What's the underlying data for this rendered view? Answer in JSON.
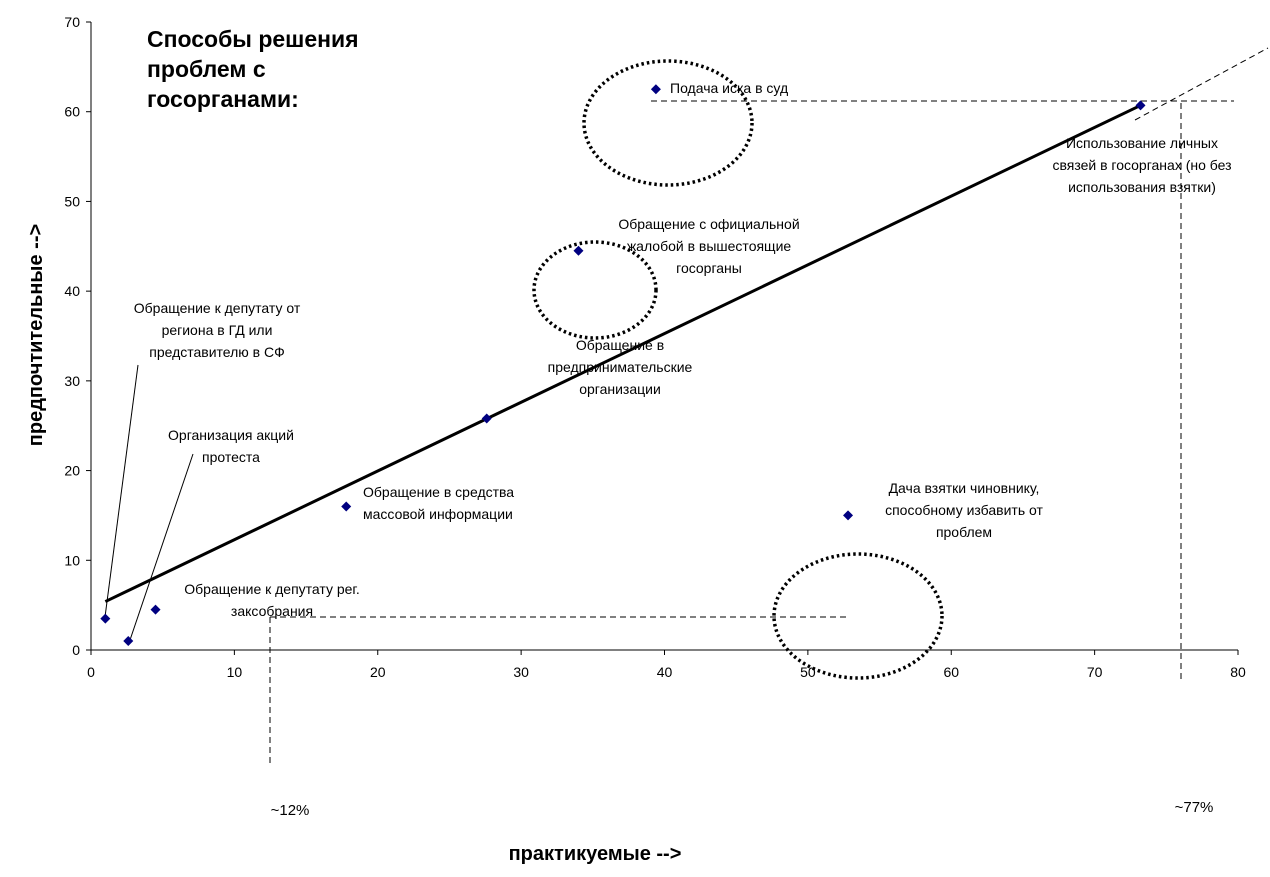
{
  "chart_data": {
    "type": "scatter",
    "title": [
      "Способы решения",
      "проблем с",
      "госорганами:"
    ],
    "xlabel": "практикуемые -->",
    "ylabel": "предпочтительные -->",
    "xlim": [
      0,
      80
    ],
    "ylim": [
      0,
      70
    ],
    "xticks": [
      0,
      10,
      20,
      30,
      40,
      50,
      60,
      70,
      80
    ],
    "yticks": [
      0,
      10,
      20,
      30,
      40,
      50,
      60,
      70
    ],
    "points": [
      {
        "x": 1,
        "y": 3.5,
        "label": [
          "Обращение к депутату от",
          "региона в ГД или",
          "представителю в СФ"
        ]
      },
      {
        "x": 2.6,
        "y": 1,
        "label": [
          "Организация акций",
          "протеста"
        ]
      },
      {
        "x": 4.5,
        "y": 4.5,
        "label": [
          "Обращение к депутату рег.",
          "заксобрания"
        ]
      },
      {
        "x": 17.8,
        "y": 16,
        "label": [
          "Обращение в средства",
          "массовой информации"
        ]
      },
      {
        "x": 27.6,
        "y": 25.8,
        "label": [
          "Обращение в",
          "предпринимательские",
          "организации"
        ]
      },
      {
        "x": 34,
        "y": 44.5,
        "label": [
          "Обращение с официальной",
          "жалобой в вышестоящие",
          "госорганы"
        ]
      },
      {
        "x": 39.4,
        "y": 62.5,
        "label": [
          "Подача иска в суд"
        ]
      },
      {
        "x": 52.8,
        "y": 15,
        "label": [
          "Дача взятки чиновнику,",
          "способному избавить от",
          "проблем"
        ]
      },
      {
        "x": 73.2,
        "y": 60.7,
        "label": [
          "Использование личных",
          "связей в госорганах (но без",
          "использования взятки)"
        ]
      }
    ],
    "trendline": {
      "from": [
        1,
        5.4
      ],
      "to": [
        73.2,
        60.7
      ]
    },
    "marker_color": "#000080",
    "annotations": [
      "~12%",
      "~77%"
    ]
  }
}
